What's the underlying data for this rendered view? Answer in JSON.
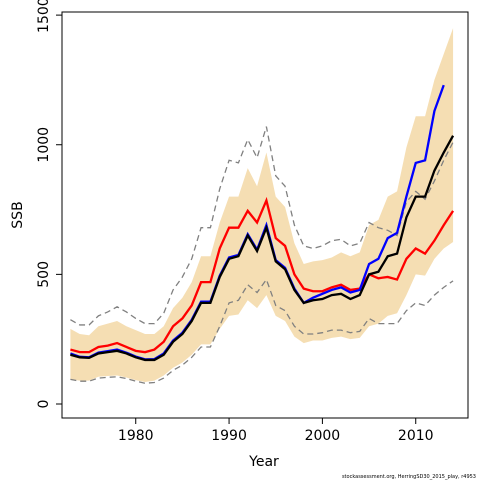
{
  "chart_data": {
    "type": "line",
    "x_label": "Year",
    "y_label": "SSB",
    "footer": "stockassessment.org, HerringSD30_2015_play, r4953",
    "x": [
      1973,
      1974,
      1975,
      1976,
      1977,
      1978,
      1979,
      1980,
      1981,
      1982,
      1983,
      1984,
      1985,
      1986,
      1987,
      1988,
      1989,
      1990,
      1991,
      1992,
      1993,
      1994,
      1995,
      1996,
      1997,
      1998,
      1999,
      2000,
      2001,
      2002,
      2003,
      2004,
      2005,
      2006,
      2007,
      2008,
      2009,
      2010,
      2011,
      2012,
      2013,
      2014
    ],
    "xlim": [
      1972.1,
      2015.6
    ],
    "xticks": [
      1980,
      1990,
      2000,
      2010
    ],
    "ylim": [
      -54,
      1512
    ],
    "yticks": [
      0,
      500,
      1000,
      1500
    ],
    "band": {
      "color": "#f5deb3",
      "upper": [
        290,
        270,
        265,
        300,
        310,
        320,
        300,
        285,
        270,
        270,
        300,
        370,
        410,
        470,
        570,
        570,
        700,
        800,
        800,
        910,
        840,
        970,
        800,
        760,
        620,
        540,
        550,
        555,
        565,
        585,
        570,
        585,
        690,
        710,
        800,
        820,
        990,
        1110,
        1110,
        1250,
        1350,
        1450
      ],
      "lower": [
        95,
        90,
        90,
        105,
        108,
        110,
        102,
        92,
        85,
        90,
        110,
        140,
        160,
        190,
        230,
        230,
        290,
        340,
        345,
        400,
        370,
        420,
        340,
        320,
        260,
        235,
        245,
        245,
        255,
        260,
        250,
        255,
        300,
        310,
        340,
        350,
        420,
        500,
        495,
        560,
        600,
        625
      ]
    },
    "series": [
      {
        "color": "#808080",
        "dashed": true,
        "values": [
          325,
          305,
          305,
          340,
          355,
          375,
          355,
          330,
          310,
          310,
          350,
          440,
          490,
          560,
          680,
          680,
          830,
          940,
          930,
          1020,
          950,
          1070,
          880,
          840,
          690,
          610,
          600,
          610,
          630,
          635,
          610,
          620,
          700,
          680,
          670,
          650,
          780,
          820,
          790,
          860,
          940,
          1010
        ]
      },
      {
        "color": "#808080",
        "dashed": true,
        "values": [
          95,
          88,
          88,
          100,
          103,
          105,
          98,
          88,
          80,
          83,
          100,
          130,
          150,
          180,
          220,
          220,
          300,
          390,
          400,
          460,
          430,
          480,
          380,
          360,
          300,
          270,
          270,
          275,
          285,
          285,
          275,
          280,
          330,
          310,
          310,
          310,
          360,
          390,
          380,
          420,
          450,
          475
        ]
      },
      {
        "color": "#ff0000",
        "dashed": false,
        "values": [
          210,
          200,
          200,
          220,
          225,
          235,
          220,
          205,
          200,
          210,
          240,
          300,
          330,
          380,
          470,
          470,
          600,
          680,
          680,
          745,
          700,
          785,
          640,
          610,
          500,
          445,
          435,
          435,
          450,
          460,
          440,
          445,
          500,
          485,
          490,
          480,
          560,
          600,
          580,
          630,
          690,
          745
        ]
      },
      {
        "color": "#0000ff",
        "dashed": false,
        "values": [
          195,
          182,
          180,
          198,
          204,
          210,
          198,
          183,
          172,
          173,
          195,
          245,
          275,
          325,
          395,
          395,
          495,
          565,
          575,
          655,
          595,
          690,
          555,
          525,
          445,
          390,
          410,
          425,
          440,
          450,
          430,
          440,
          540,
          560,
          640,
          660,
          800,
          930,
          940,
          1130,
          1230,
          null
        ]
      },
      {
        "color": "#000000",
        "dashed": false,
        "values": [
          190,
          180,
          178,
          195,
          200,
          205,
          195,
          180,
          170,
          170,
          190,
          240,
          270,
          320,
          390,
          390,
          490,
          560,
          570,
          650,
          590,
          680,
          550,
          520,
          440,
          390,
          400,
          405,
          420,
          425,
          405,
          420,
          500,
          510,
          570,
          580,
          720,
          800,
          800,
          900,
          970,
          1035
        ]
      }
    ]
  }
}
